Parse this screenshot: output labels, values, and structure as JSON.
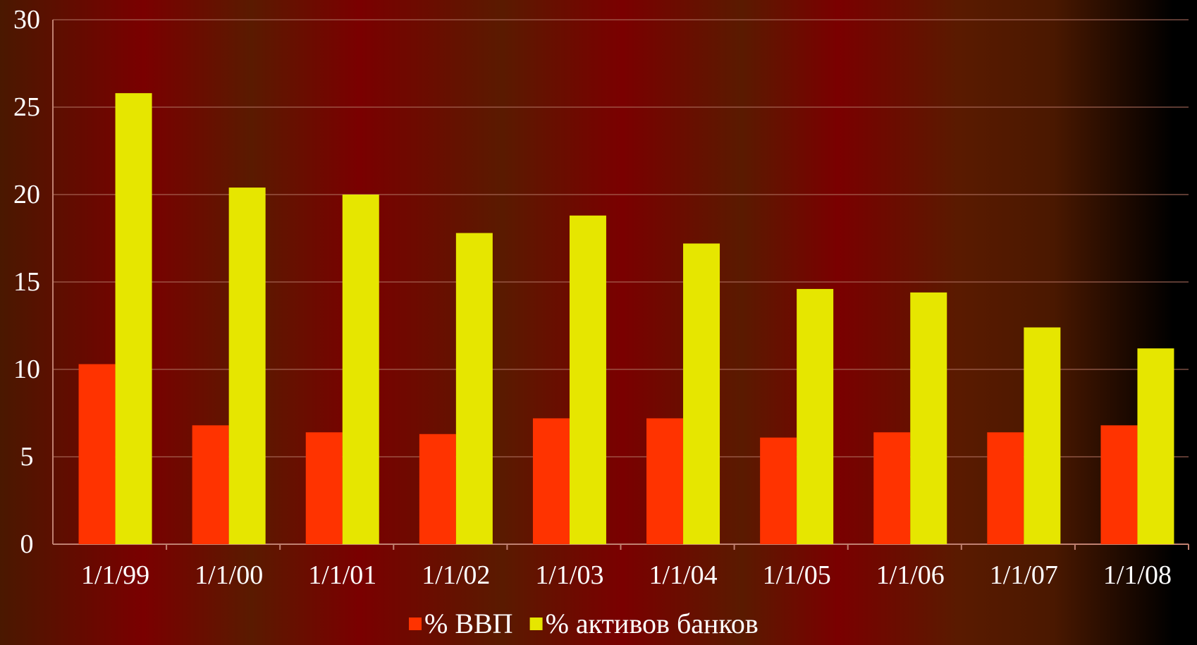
{
  "chart_data": {
    "type": "bar",
    "categories": [
      "1/1/99",
      "1/1/00",
      "1/1/01",
      "1/1/02",
      "1/1/03",
      "1/1/04",
      "1/1/05",
      "1/1/06",
      "1/1/07",
      "1/1/08"
    ],
    "series": [
      {
        "name": "% ВВП",
        "values": [
          10.3,
          6.8,
          6.4,
          6.3,
          7.2,
          7.2,
          6.1,
          6.4,
          6.4,
          6.8
        ],
        "color": "#ff3300"
      },
      {
        "name": "% активов банков",
        "values": [
          25.8,
          20.4,
          20.0,
          17.8,
          18.8,
          17.2,
          14.6,
          14.4,
          12.4,
          11.2
        ],
        "color": "#e6e600"
      }
    ],
    "ylim": [
      0,
      30
    ],
    "yticks": [
      0,
      5,
      10,
      15,
      20,
      25,
      30
    ],
    "grid": true,
    "legend": "bottom",
    "title": "",
    "xlabel": "",
    "ylabel": "",
    "colors": {
      "grid": "#b07060",
      "axis": "#c08070",
      "label": "#ffffff"
    }
  }
}
